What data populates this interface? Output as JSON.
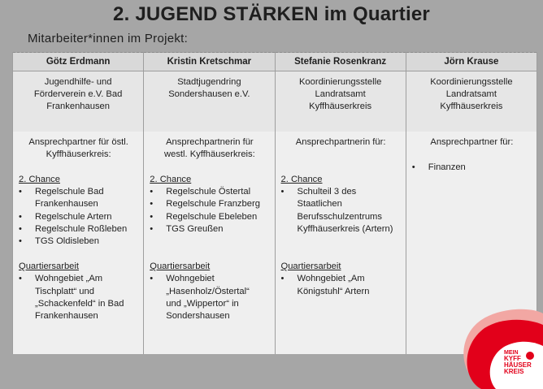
{
  "title": "2. JUGEND STÄRKEN im Quartier",
  "subtitle": "Mitarbeiter*innen im Projekt:",
  "columns": [
    {
      "name": "Götz Erdmann",
      "org_lines": [
        "Jugendhilfe- und",
        "Förderverein e.V. Bad",
        "Frankenhausen"
      ],
      "contact_lines": [
        "Ansprechpartner für östl.",
        "Kyffhäuserkreis:"
      ],
      "chance_heading": "2. Chance",
      "chance_items": [
        [
          "Regelschule Bad",
          "Frankenhausen"
        ],
        [
          "Regelschule Artern"
        ],
        [
          "Regelschule Roßleben"
        ],
        [
          "TGS Oldisleben"
        ]
      ],
      "quartier_heading": "Quartiersarbeit",
      "quartier_items": [
        [
          "Wohngebiet „Am",
          "Tischplatt“ und",
          "„Schackenfeld“ in Bad",
          "Frankenhausen"
        ]
      ]
    },
    {
      "name": "Kristin Kretschmar",
      "org_lines": [
        "Stadtjugendring",
        "Sondershausen e.V."
      ],
      "contact_lines": [
        "Ansprechpartnerin für",
        "westl. Kyffhäuserkreis:"
      ],
      "chance_heading": "2. Chance",
      "chance_items": [
        [
          "Regelschule Östertal"
        ],
        [
          "Regelschule Franzberg"
        ],
        [
          "Regelschule Ebeleben"
        ],
        [
          "TGS Greußen"
        ]
      ],
      "quartier_heading": "Quartiersarbeit",
      "quartier_items": [
        [
          "Wohngebiet",
          "„Hasenholz/Östertal“",
          "und „Wippertor“ in",
          "Sondershausen"
        ]
      ]
    },
    {
      "name": "Stefanie Rosenkranz",
      "org_lines": [
        "Koordinierungsstelle",
        "Landratsamt",
        "Kyffhäuserkreis"
      ],
      "contact_lines": [
        "Ansprechpartnerin für:"
      ],
      "chance_heading": "2. Chance",
      "chance_items": [
        [
          "Schulteil 3 des",
          "Staatlichen",
          "Berufsschulzentrums",
          "Kyffhäuserkreis (Artern)"
        ]
      ],
      "quartier_heading": "Quartiersarbeit",
      "quartier_items": [
        [
          "Wohngebiet „Am",
          "Königstuhl“ Artern"
        ]
      ]
    },
    {
      "name": "Jörn Krause",
      "org_lines": [
        "Koordinierungsstelle",
        "Landratsamt",
        "Kyffhäuserkreis"
      ],
      "contact_lines": [
        "Ansprechpartner für:"
      ],
      "chance_heading": "",
      "chance_items": [
        [
          "Finanzen"
        ]
      ],
      "quartier_heading": "",
      "quartier_items": []
    }
  ],
  "logo": {
    "lines": [
      "MEIN",
      "KYFF",
      "HÄUSER",
      "KREIS"
    ],
    "colors": {
      "red": "#e2001a",
      "pink": "#f2a7a3",
      "white": "#ffffff"
    }
  }
}
